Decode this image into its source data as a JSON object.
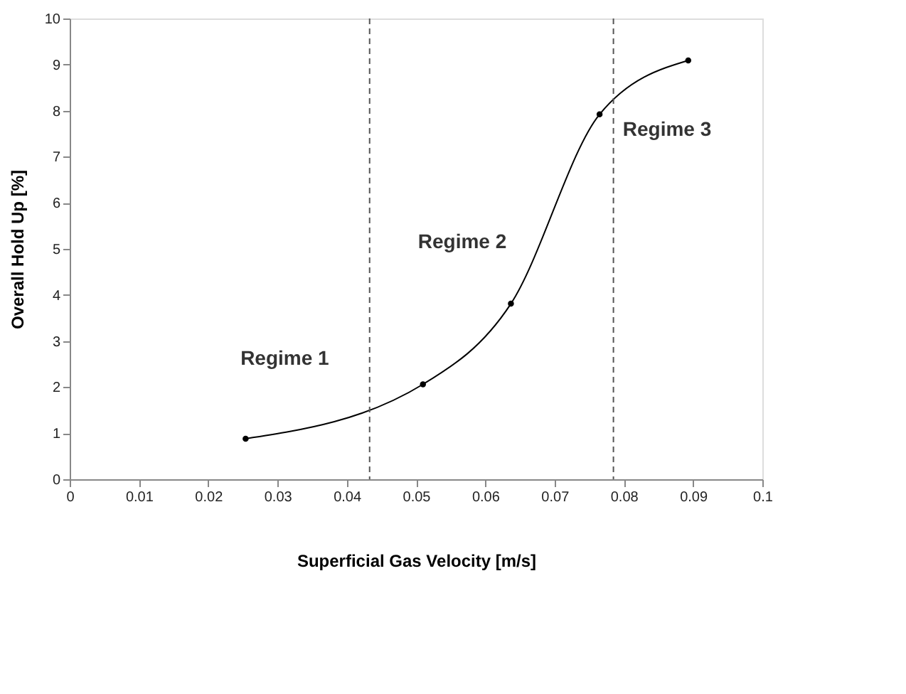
{
  "chart_data": {
    "type": "line",
    "xlabel": "Superficial Gas Velocity [m/s]",
    "ylabel": "Overall Hold Up [%]",
    "x": [
      0.0254,
      0.051,
      0.0637,
      0.0765,
      0.0893
    ],
    "series": [
      {
        "color": "#000000",
        "values": [
          0.88,
          2.06,
          3.81,
          7.92,
          9.09
        ]
      }
    ],
    "xlim": [
      0,
      0.1
    ],
    "xticks": [
      0,
      0.01,
      0.02,
      0.03,
      0.04,
      0.05,
      0.06,
      0.07,
      0.08,
      0.09,
      0.1
    ],
    "ylim": [
      0,
      10
    ],
    "yticks": [
      0,
      1,
      2,
      3,
      4,
      5,
      6,
      7,
      8,
      9,
      10
    ],
    "ref_lines": [
      {
        "axis": "x",
        "value": 0.0433,
        "line_style": "dashed",
        "color": "#555555"
      },
      {
        "axis": "x",
        "value": 0.0785,
        "line_style": "dashed",
        "color": "#555555"
      }
    ],
    "annotations": [
      "Regime 1",
      "Regime 2",
      "Regime 3"
    ],
    "marker": "circle",
    "line_style": "solid",
    "grid": false
  }
}
